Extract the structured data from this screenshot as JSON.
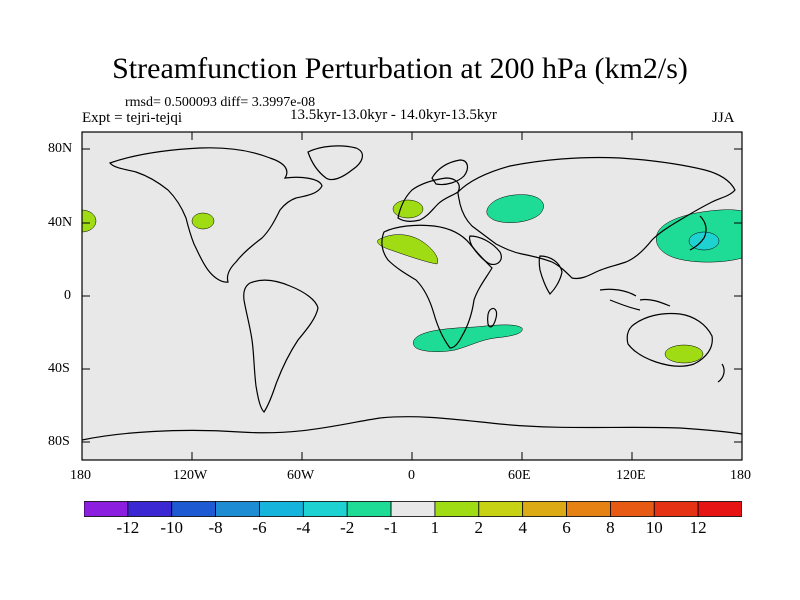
{
  "header": {
    "title": "Streamfunction Perturbation at 200 hPa (km2/s)",
    "stats": "rmsd= 0.500093 diff= 3.3997e-08",
    "expt": "Expt = tejri-tejqi",
    "period": "13.5kyr-13.0kyr - 14.0kyr-13.5kyr",
    "season": "JJA"
  },
  "map": {
    "lat_ticks": [
      "80N",
      "40N",
      "0",
      "40S",
      "80S"
    ],
    "lon_ticks": [
      "180",
      "120W",
      "60W",
      "0",
      "60E",
      "120E",
      "180"
    ],
    "colors": {
      "background": "#e8e8e8",
      "coastline": "#000000"
    },
    "anomalies": [
      {
        "label": "North Pacific / California",
        "sign": "+",
        "level": 1
      },
      {
        "label": "Western Europe",
        "sign": "+",
        "level": 1
      },
      {
        "label": "North Africa",
        "sign": "+",
        "level": 1
      },
      {
        "label": "Central Asia",
        "sign": "-",
        "level": -1
      },
      {
        "label": "NW Pacific",
        "sign": "-",
        "level": -2
      },
      {
        "label": "South Atlantic / South Africa",
        "sign": "-",
        "level": -1
      },
      {
        "label": "SE Australia",
        "sign": "+",
        "level": 1
      }
    ]
  },
  "colorbar": {
    "labels": [
      "-12",
      "-10",
      "-8",
      "-6",
      "-4",
      "-2",
      "-1",
      "1",
      "2",
      "4",
      "6",
      "8",
      "10",
      "12"
    ],
    "colors": [
      "#8c1ee0",
      "#3c28d2",
      "#1e5ad2",
      "#1e8cd2",
      "#14b4dc",
      "#1ed2d2",
      "#1edc96",
      "#e8e8e8",
      "#a0dc14",
      "#c8d214",
      "#dcaa14",
      "#e68214",
      "#e65a14",
      "#e63214",
      "#e61414"
    ]
  }
}
